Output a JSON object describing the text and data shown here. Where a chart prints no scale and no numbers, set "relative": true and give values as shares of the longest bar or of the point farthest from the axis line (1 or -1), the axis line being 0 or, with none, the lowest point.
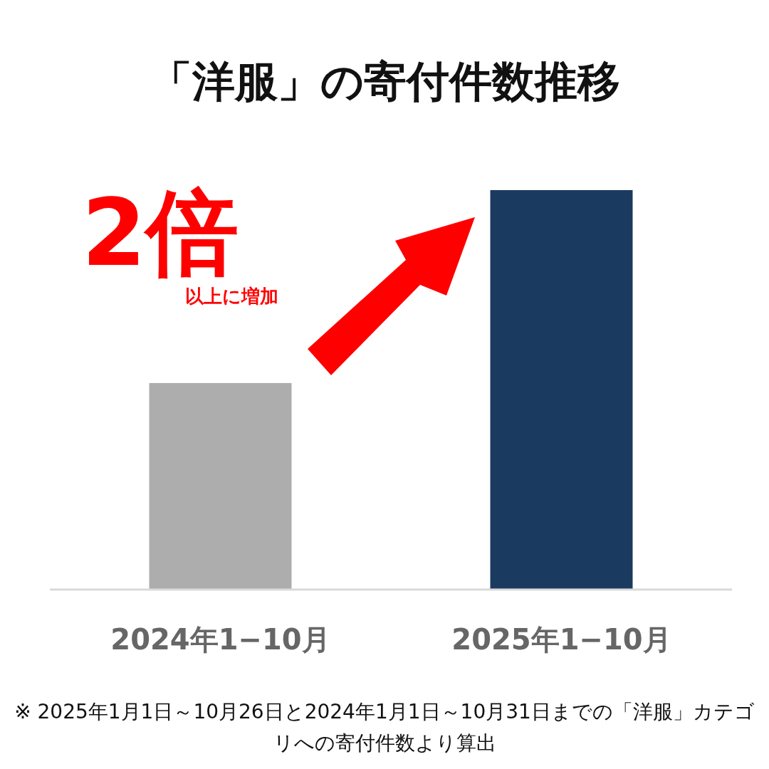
{
  "chart_data": {
    "type": "bar",
    "title": "「洋服」の寄付件数推移",
    "categories": [
      "2024年1−10月",
      "2025年1−10月"
    ],
    "values": [
      0.517,
      1
    ],
    "colors": [
      "#adadad",
      "#1b3a5f"
    ],
    "relative": true,
    "annotations": [
      "2倍",
      "以上に増加",
      "※ 2025年1月1日～10月26日と2024年1月1日～10月31日までの「洋服」カテゴリへの寄付件数より算出"
    ]
  }
}
